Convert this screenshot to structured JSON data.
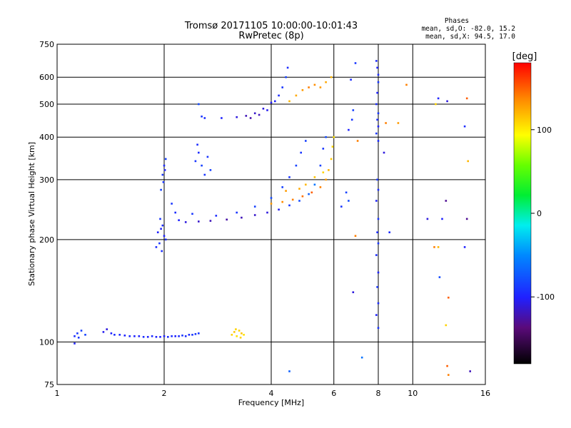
{
  "chart_data": {
    "type": "scatter",
    "title": "Tromsø 20171105 10:00:00-10:01:43",
    "subtitle": "RwPretec (8p)",
    "info": {
      "heading": "Phases",
      "line_o": "mean, sd,O: -82.0, 15.2",
      "line_x": "mean, sd,X:  94.5, 17.0"
    },
    "xlabel": "Frequency [MHz]",
    "ylabel": "Stationary phase Virtual Height [km]",
    "x_scale": "log",
    "y_scale": "log",
    "xlim": [
      1,
      16
    ],
    "ylim": [
      75,
      750
    ],
    "x_ticks": [
      {
        "label": "1",
        "value": 1
      },
      {
        "label": "2",
        "value": 2
      },
      {
        "label": "4",
        "value": 4
      },
      {
        "label": "6",
        "value": 6
      },
      {
        "label": "8",
        "value": 8
      },
      {
        "label": "10",
        "value": 10
      },
      {
        "label": "16",
        "value": 16
      }
    ],
    "y_ticks": [
      {
        "label": "75",
        "value": 75
      },
      {
        "label": "100",
        "value": 100
      },
      {
        "label": "200",
        "value": 200
      },
      {
        "label": "300",
        "value": 300
      },
      {
        "label": "400",
        "value": 400
      },
      {
        "label": "500",
        "value": 500
      },
      {
        "label": "600",
        "value": 600
      },
      {
        "label": "750",
        "value": 750
      }
    ],
    "grid": true,
    "colorbar": {
      "label": "[deg]",
      "range": [
        -180,
        180
      ],
      "ticks": [
        {
          "label": "100",
          "value": 100
        },
        {
          "label": "0",
          "value": 0
        },
        {
          "label": "-100",
          "value": -100
        }
      ]
    },
    "series": [
      {
        "points": [
          [
            1.12,
            104,
            -95
          ],
          [
            1.14,
            106,
            -90
          ],
          [
            1.17,
            108,
            -85
          ],
          [
            1.12,
            99,
            -100
          ],
          [
            1.2,
            105,
            -85
          ],
          [
            1.15,
            103,
            -90
          ]
        ]
      },
      {
        "points": [
          [
            1.35,
            107,
            -105
          ],
          [
            1.38,
            109,
            -110
          ],
          [
            1.42,
            106,
            -100
          ],
          [
            1.5,
            105,
            -95
          ],
          [
            1.6,
            104,
            -95
          ],
          [
            1.7,
            104,
            -100
          ],
          [
            1.8,
            103.5,
            -100
          ],
          [
            1.9,
            103.5,
            -100
          ],
          [
            2.0,
            104,
            -100
          ],
          [
            2.1,
            104,
            -95
          ],
          [
            2.2,
            104,
            -95
          ],
          [
            2.3,
            104,
            -95
          ],
          [
            2.4,
            105,
            -90
          ],
          [
            2.5,
            106,
            -90
          ],
          [
            1.45,
            105,
            -95
          ],
          [
            1.55,
            104.5,
            -100
          ],
          [
            1.65,
            104,
            -100
          ],
          [
            1.75,
            103.5,
            -95
          ],
          [
            1.85,
            104,
            -95
          ],
          [
            1.95,
            103.5,
            -100
          ],
          [
            2.05,
            103.5,
            -95
          ],
          [
            2.15,
            104,
            -100
          ],
          [
            2.25,
            104.5,
            -90
          ],
          [
            2.35,
            105,
            -95
          ],
          [
            2.45,
            105.5,
            -90
          ]
        ]
      },
      {
        "points": [
          [
            3.1,
            105,
            110
          ],
          [
            3.15,
            107,
            115
          ],
          [
            3.2,
            104,
            105
          ],
          [
            3.25,
            108,
            110
          ],
          [
            3.3,
            106,
            115
          ],
          [
            3.35,
            105,
            105
          ],
          [
            3.18,
            109,
            110
          ],
          [
            3.28,
            103,
            110
          ]
        ]
      },
      {
        "points": [
          [
            1.9,
            190,
            -95
          ],
          [
            1.92,
            210,
            -100
          ],
          [
            1.95,
            230,
            -90
          ],
          [
            1.97,
            185,
            -95
          ],
          [
            2.0,
            205,
            -100
          ],
          [
            1.98,
            220,
            -95
          ],
          [
            1.94,
            195,
            -90
          ],
          [
            1.96,
            215,
            -100
          ],
          [
            2.02,
            200,
            -95
          ]
        ]
      },
      {
        "points": [
          [
            1.96,
            280,
            -85
          ],
          [
            1.98,
            310,
            -90
          ],
          [
            2.0,
            330,
            -95
          ],
          [
            2.02,
            345,
            -85
          ],
          [
            1.99,
            295,
            -90
          ],
          [
            2.01,
            320,
            -100
          ]
        ]
      },
      {
        "points": [
          [
            2.1,
            255,
            -90
          ],
          [
            2.15,
            240,
            -95
          ],
          [
            2.2,
            228,
            -100
          ],
          [
            2.3,
            225,
            -110
          ],
          [
            2.5,
            226,
            -115
          ],
          [
            2.7,
            227,
            -120
          ],
          [
            3.0,
            229,
            -125
          ],
          [
            3.3,
            232,
            -120
          ],
          [
            3.6,
            236,
            -115
          ],
          [
            3.9,
            240,
            -110
          ],
          [
            4.2,
            245,
            -105
          ],
          [
            4.5,
            252,
            -90
          ],
          [
            4.8,
            260,
            -80
          ],
          [
            5.1,
            272,
            -70
          ],
          [
            5.3,
            290,
            -60
          ],
          [
            5.5,
            330,
            -85
          ],
          [
            5.6,
            370,
            -90
          ],
          [
            5.7,
            400,
            -80
          ],
          [
            2.4,
            238,
            -90
          ],
          [
            2.8,
            235,
            -95
          ],
          [
            3.2,
            240,
            -90
          ],
          [
            3.6,
            250,
            -85
          ],
          [
            4.0,
            265,
            -80
          ],
          [
            4.3,
            285,
            -85
          ],
          [
            4.5,
            305,
            -90
          ],
          [
            4.7,
            330,
            -85
          ],
          [
            4.85,
            360,
            -90
          ],
          [
            5.0,
            390,
            -85
          ]
        ]
      },
      {
        "points": [
          [
            4.0,
            255,
            130
          ],
          [
            4.3,
            258,
            135
          ],
          [
            4.6,
            262,
            140
          ],
          [
            4.9,
            268,
            145
          ],
          [
            5.2,
            275,
            150
          ],
          [
            5.5,
            285,
            140
          ],
          [
            5.7,
            300,
            130
          ],
          [
            5.8,
            320,
            120
          ],
          [
            5.9,
            345,
            115
          ],
          [
            5.95,
            375,
            110
          ],
          [
            6.0,
            400,
            105
          ],
          [
            5.0,
            290,
            120
          ],
          [
            5.3,
            305,
            115
          ],
          [
            5.6,
            315,
            110
          ],
          [
            4.4,
            278,
            130
          ],
          [
            4.8,
            282,
            125
          ]
        ]
      },
      {
        "points": [
          [
            2.6,
            455,
            -95
          ],
          [
            2.9,
            455,
            -100
          ],
          [
            3.2,
            458,
            -110
          ],
          [
            3.4,
            462,
            -120
          ],
          [
            3.6,
            470,
            -115
          ],
          [
            3.8,
            485,
            -110
          ],
          [
            4.0,
            505,
            -105
          ],
          [
            4.2,
            530,
            -95
          ],
          [
            4.3,
            560,
            -90
          ],
          [
            4.4,
            600,
            -85
          ],
          [
            4.45,
            640,
            -95
          ],
          [
            3.5,
            455,
            -125
          ],
          [
            3.7,
            465,
            -120
          ],
          [
            3.9,
            480,
            -105
          ],
          [
            4.1,
            510,
            -100
          ],
          [
            2.5,
            500,
            -80
          ],
          [
            2.55,
            460,
            -90
          ]
        ]
      },
      {
        "points": [
          [
            4.5,
            510,
            120
          ],
          [
            4.7,
            530,
            125
          ],
          [
            4.9,
            550,
            130
          ],
          [
            5.1,
            560,
            140
          ],
          [
            5.3,
            570,
            135
          ],
          [
            5.5,
            560,
            130
          ],
          [
            5.7,
            580,
            125
          ],
          [
            5.9,
            600,
            120
          ]
        ]
      },
      {
        "points": [
          [
            2.45,
            340,
            -90
          ],
          [
            2.5,
            360,
            -95
          ],
          [
            2.55,
            330,
            -85
          ],
          [
            2.6,
            310,
            -90
          ],
          [
            2.48,
            380,
            -95
          ],
          [
            2.65,
            350,
            -90
          ],
          [
            2.7,
            320,
            -85
          ]
        ]
      },
      {
        "points": [
          [
            6.9,
            660,
            -90
          ],
          [
            6.7,
            590,
            -95
          ],
          [
            6.8,
            480,
            -85
          ],
          [
            6.75,
            450,
            -90
          ],
          [
            6.6,
            420,
            -100
          ],
          [
            7.0,
            390,
            140
          ],
          [
            6.5,
            275,
            -85
          ],
          [
            6.6,
            260,
            -80
          ],
          [
            7.2,
            90,
            -60
          ],
          [
            6.8,
            140,
            -110
          ],
          [
            6.9,
            205,
            140
          ],
          [
            4.5,
            82,
            -70
          ],
          [
            6.3,
            250,
            -90
          ]
        ]
      },
      {
        "points": [
          [
            7.9,
            670,
            -95
          ],
          [
            7.95,
            640,
            -100
          ],
          [
            8.0,
            610,
            -95
          ],
          [
            8.0,
            580,
            -90
          ],
          [
            7.95,
            540,
            -100
          ],
          [
            7.9,
            500,
            -95
          ],
          [
            8.0,
            470,
            -90
          ],
          [
            7.95,
            450,
            -95
          ],
          [
            8.0,
            430,
            -100
          ],
          [
            7.9,
            410,
            -90
          ],
          [
            8.0,
            390,
            -95
          ],
          [
            7.95,
            300,
            -90
          ],
          [
            8.0,
            280,
            -95
          ],
          [
            7.9,
            260,
            -100
          ],
          [
            8.0,
            230,
            -90
          ],
          [
            7.95,
            210,
            -95
          ],
          [
            8.0,
            195,
            -90
          ],
          [
            7.9,
            180,
            -95
          ],
          [
            8.0,
            160,
            -100
          ],
          [
            7.95,
            145,
            -90
          ],
          [
            8.0,
            130,
            -95
          ],
          [
            7.9,
            120,
            -100
          ],
          [
            8.0,
            110,
            -90
          ]
        ]
      },
      {
        "points": [
          [
            8.4,
            440,
            140
          ],
          [
            9.1,
            440,
            130
          ],
          [
            9.6,
            570,
            140
          ],
          [
            8.6,
            210,
            -95
          ],
          [
            8.3,
            360,
            -110
          ]
        ]
      },
      {
        "points": [
          [
            11.8,
            520,
            -100
          ],
          [
            12.5,
            510,
            -110
          ],
          [
            12.4,
            260,
            -130
          ],
          [
            12.1,
            230,
            -100
          ],
          [
            11.5,
            190,
            140
          ],
          [
            11.8,
            190,
            120
          ],
          [
            11.9,
            155,
            -80
          ],
          [
            12.6,
            135,
            150
          ],
          [
            12.4,
            112,
            110
          ],
          [
            12.5,
            85,
            150
          ],
          [
            12.6,
            80,
            140
          ],
          [
            14.2,
            520,
            150
          ],
          [
            14.0,
            430,
            -95
          ],
          [
            14.3,
            340,
            120
          ],
          [
            14.2,
            230,
            -130
          ],
          [
            14.0,
            190,
            -100
          ],
          [
            14.5,
            82,
            -120
          ],
          [
            11.0,
            230,
            -110
          ],
          [
            11.6,
            500,
            110
          ]
        ]
      }
    ]
  }
}
